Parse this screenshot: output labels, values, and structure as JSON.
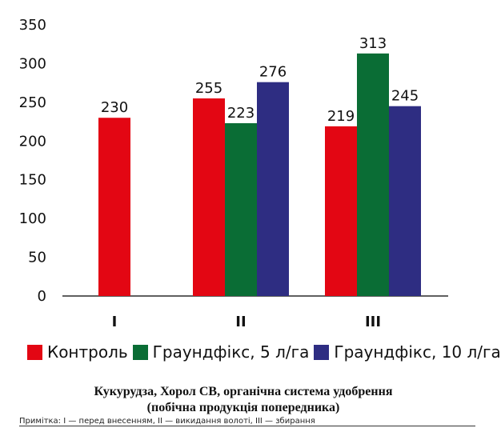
{
  "chart_data": {
    "type": "bar",
    "categories": [
      "I",
      "II",
      "III"
    ],
    "series": [
      {
        "name": "Контроль",
        "color": "#e30613",
        "values": [
          230,
          255,
          219
        ],
        "value_labels": [
          "230",
          "255",
          "219"
        ]
      },
      {
        "name": "Граундфікс, 5 л/га",
        "color": "#0a6d35",
        "values": [
          null,
          223,
          313
        ],
        "value_labels": [
          "",
          "223",
          "313"
        ]
      },
      {
        "name": "Граундфікс, 10 л/га",
        "color": "#2e2d82",
        "values": [
          null,
          276,
          245
        ],
        "value_labels": [
          "",
          "276",
          "245"
        ]
      }
    ],
    "ylim": [
      0,
      350
    ],
    "yticks": [
      0,
      50,
      100,
      150,
      200,
      250,
      300,
      350
    ],
    "grid": false,
    "legend_position": "bottom"
  },
  "caption": {
    "line1": "Кукурудза, Хорол СВ, органічна система удобрення",
    "line2": "(побічна продукція попередника)"
  },
  "note": "Примітка: I — перед внесенням, II — викидання волоті, III — збирання"
}
